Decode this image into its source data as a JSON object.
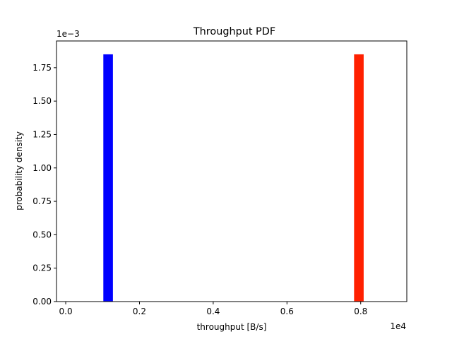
{
  "chart_data": {
    "type": "bar",
    "title": "Throughput PDF",
    "xlabel": "throughput [B/s]",
    "ylabel": "probability density",
    "x_offset_label": "1e4",
    "y_offset_label": "1e−3",
    "xlim": [
      -0.025,
      0.925
    ],
    "ylim": [
      0,
      1.95
    ],
    "x_ticks": [
      0.0,
      0.2,
      0.4,
      0.6,
      0.8
    ],
    "x_tick_labels": [
      "0.0",
      "0.2",
      "0.4",
      "0.6",
      "0.8"
    ],
    "y_ticks": [
      0.0,
      0.25,
      0.5,
      0.75,
      1.0,
      1.25,
      1.5,
      1.75
    ],
    "y_tick_labels": [
      "0.00",
      "0.25",
      "0.50",
      "0.75",
      "1.00",
      "1.25",
      "1.50",
      "1.75"
    ],
    "grid": false,
    "series": [
      {
        "color": "#0000ff",
        "bars": [
          {
            "x0": 0.102,
            "x1": 0.128,
            "value": 1.85
          }
        ]
      },
      {
        "color": "#ff2000",
        "bars": [
          {
            "x0": 0.782,
            "x1": 0.808,
            "value": 1.85
          }
        ]
      }
    ]
  }
}
